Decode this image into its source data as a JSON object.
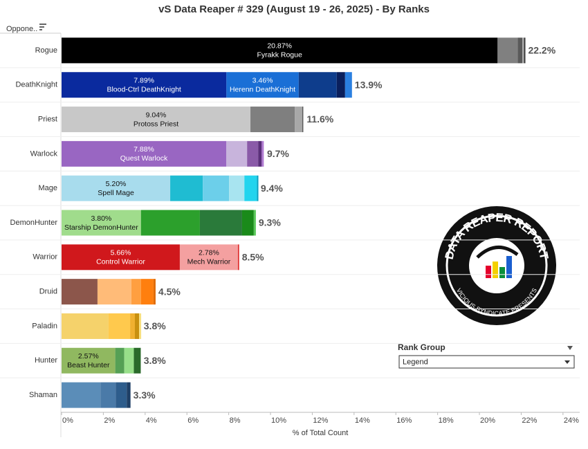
{
  "chart_data": {
    "type": "stacked-bar",
    "title": "vS Data Reaper #  329 (August 19 - 26, 2025) - By Ranks",
    "row_header": "Oppone..",
    "x_label": "% of Total Count",
    "xlim": [
      0,
      24.8
    ],
    "xticks": [
      {
        "value": 0,
        "label": "0%"
      },
      {
        "value": 2,
        "label": "2%"
      },
      {
        "value": 4,
        "label": "4%"
      },
      {
        "value": 6,
        "label": "6%"
      },
      {
        "value": 8,
        "label": "8%"
      },
      {
        "value": 10,
        "label": "10%"
      },
      {
        "value": 12,
        "label": "12%"
      },
      {
        "value": 14,
        "label": "14%"
      },
      {
        "value": 16,
        "label": "16%"
      },
      {
        "value": 18,
        "label": "18%"
      },
      {
        "value": 20,
        "label": "20%"
      },
      {
        "value": 22,
        "label": "22%"
      },
      {
        "value": 24,
        "label": "24%"
      }
    ],
    "bars": [
      {
        "category": "Rogue",
        "total": 22.2,
        "total_label": "22.2%",
        "segments": [
          {
            "name": "Fyrakk Rogue",
            "value": 20.87,
            "value_label": "20.87%",
            "color": "#000000"
          },
          {
            "value": 0.96,
            "color": "#808080"
          },
          {
            "value": 0.23,
            "color": "#5a5a5a"
          },
          {
            "value": 0.07,
            "color": "#b0b0b0"
          },
          {
            "value": 0.07,
            "color": "#3a3a3a"
          }
        ]
      },
      {
        "category": "DeathKnight",
        "total": 13.9,
        "total_label": "13.9%",
        "segments": [
          {
            "name": "Blood-Ctrl DeathKnight",
            "value": 7.89,
            "value_label": "7.89%",
            "color": "#0a2a9e"
          },
          {
            "name": "Herenn DeathKnight",
            "value": 3.46,
            "value_label": "3.46%",
            "color": "#1a6fd6"
          },
          {
            "value": 1.82,
            "color": "#0e3d8c"
          },
          {
            "value": 0.4,
            "color": "#0a1f5c"
          },
          {
            "value": 0.33,
            "color": "#2a7fe0"
          }
        ]
      },
      {
        "category": "Priest",
        "total": 11.6,
        "total_label": "11.6%",
        "segments": [
          {
            "name": "Protoss Priest",
            "value": 9.04,
            "value_label": "9.04%",
            "color": "#c8c8c8"
          },
          {
            "value": 2.12,
            "color": "#7f7f7f"
          },
          {
            "value": 0.36,
            "color": "#a8a8a8"
          },
          {
            "value": 0.05,
            "color": "#5a5a5a"
          }
        ]
      },
      {
        "category": "Warlock",
        "total": 9.7,
        "total_label": "9.7%",
        "segments": [
          {
            "name": "Quest Warlock",
            "value": 7.88,
            "value_label": "7.88%",
            "color": "#9966c2"
          },
          {
            "value": 1.0,
            "color": "#c8b4dc"
          },
          {
            "value": 0.53,
            "color": "#8a5aa8"
          },
          {
            "value": 0.17,
            "color": "#5a2e7a"
          },
          {
            "value": 0.1,
            "color": "#b07ad0"
          }
        ]
      },
      {
        "category": "Mage",
        "total": 9.4,
        "total_label": "9.4%",
        "segments": [
          {
            "name": "Spell Mage",
            "value": 5.2,
            "value_label": "5.20%",
            "color": "#a8dced"
          },
          {
            "value": 1.56,
            "color": "#1fbcd2"
          },
          {
            "value": 1.26,
            "color": "#6ccfea"
          },
          {
            "value": 0.73,
            "color": "#a8e4f0"
          },
          {
            "value": 0.6,
            "color": "#22d4ee"
          },
          {
            "value": 0.07,
            "color": "#0aa0c0"
          }
        ]
      },
      {
        "category": "DemonHunter",
        "total": 9.3,
        "total_label": "9.3%",
        "segments": [
          {
            "name": "Starship DemonHunter",
            "value": 3.8,
            "value_label": "3.80%",
            "color": "#a0dc8c"
          },
          {
            "value": 2.82,
            "color": "#2ca02c"
          },
          {
            "value": 2.02,
            "color": "#2a7a3a"
          },
          {
            "value": 0.56,
            "color": "#1a8a1a"
          },
          {
            "value": 0.1,
            "color": "#5ac85a"
          }
        ]
      },
      {
        "category": "Warrior",
        "total": 8.5,
        "total_label": "8.5%",
        "segments": [
          {
            "name": "Control Warrior",
            "value": 5.66,
            "value_label": "5.66%",
            "color": "#d0181c"
          },
          {
            "name": "Mech Warrior",
            "value": 2.78,
            "value_label": "2.78%",
            "color": "#f4a0a0"
          },
          {
            "value": 0.06,
            "color": "#e03030"
          }
        ]
      },
      {
        "category": "Druid",
        "total": 4.5,
        "total_label": "4.5%",
        "segments": [
          {
            "value": 1.72,
            "color": "#8c564b"
          },
          {
            "value": 1.62,
            "color": "#ffbb78"
          },
          {
            "value": 0.46,
            "color": "#ff9f40"
          },
          {
            "value": 0.6,
            "color": "#ff7f0e"
          },
          {
            "value": 0.1,
            "color": "#e06a00"
          }
        ]
      },
      {
        "category": "Paladin",
        "total": 3.8,
        "total_label": "3.8%",
        "segments": [
          {
            "value": 2.25,
            "color": "#f5d26b"
          },
          {
            "value": 1.03,
            "color": "#ffc94d"
          },
          {
            "value": 0.23,
            "color": "#f0b030"
          },
          {
            "value": 0.2,
            "color": "#c89010"
          },
          {
            "value": 0.1,
            "color": "#f8e080"
          }
        ]
      },
      {
        "category": "Hunter",
        "total": 3.8,
        "total_label": "3.8%",
        "segments": [
          {
            "name": "Beast Hunter",
            "value": 2.57,
            "value_label": "2.57%",
            "color": "#90b860"
          },
          {
            "value": 0.43,
            "color": "#55a055"
          },
          {
            "value": 0.46,
            "color": "#98df8a"
          },
          {
            "value": 0.33,
            "color": "#2a6a2a"
          }
        ]
      },
      {
        "category": "Shaman",
        "total": 3.3,
        "total_label": "3.3%",
        "segments": [
          {
            "value": 1.86,
            "color": "#5b8db8"
          },
          {
            "value": 0.73,
            "color": "#4a7aa8"
          },
          {
            "value": 0.53,
            "color": "#2e5d8c"
          },
          {
            "value": 0.18,
            "color": "#1e3f66"
          }
        ]
      }
    ]
  },
  "rank_group": {
    "label": "Rank Group",
    "selected": "Legend"
  },
  "logo": {
    "title": "DATA REAPER REPORT",
    "subtitle": "VICIOUS SYNDICATE PRESENTS"
  }
}
